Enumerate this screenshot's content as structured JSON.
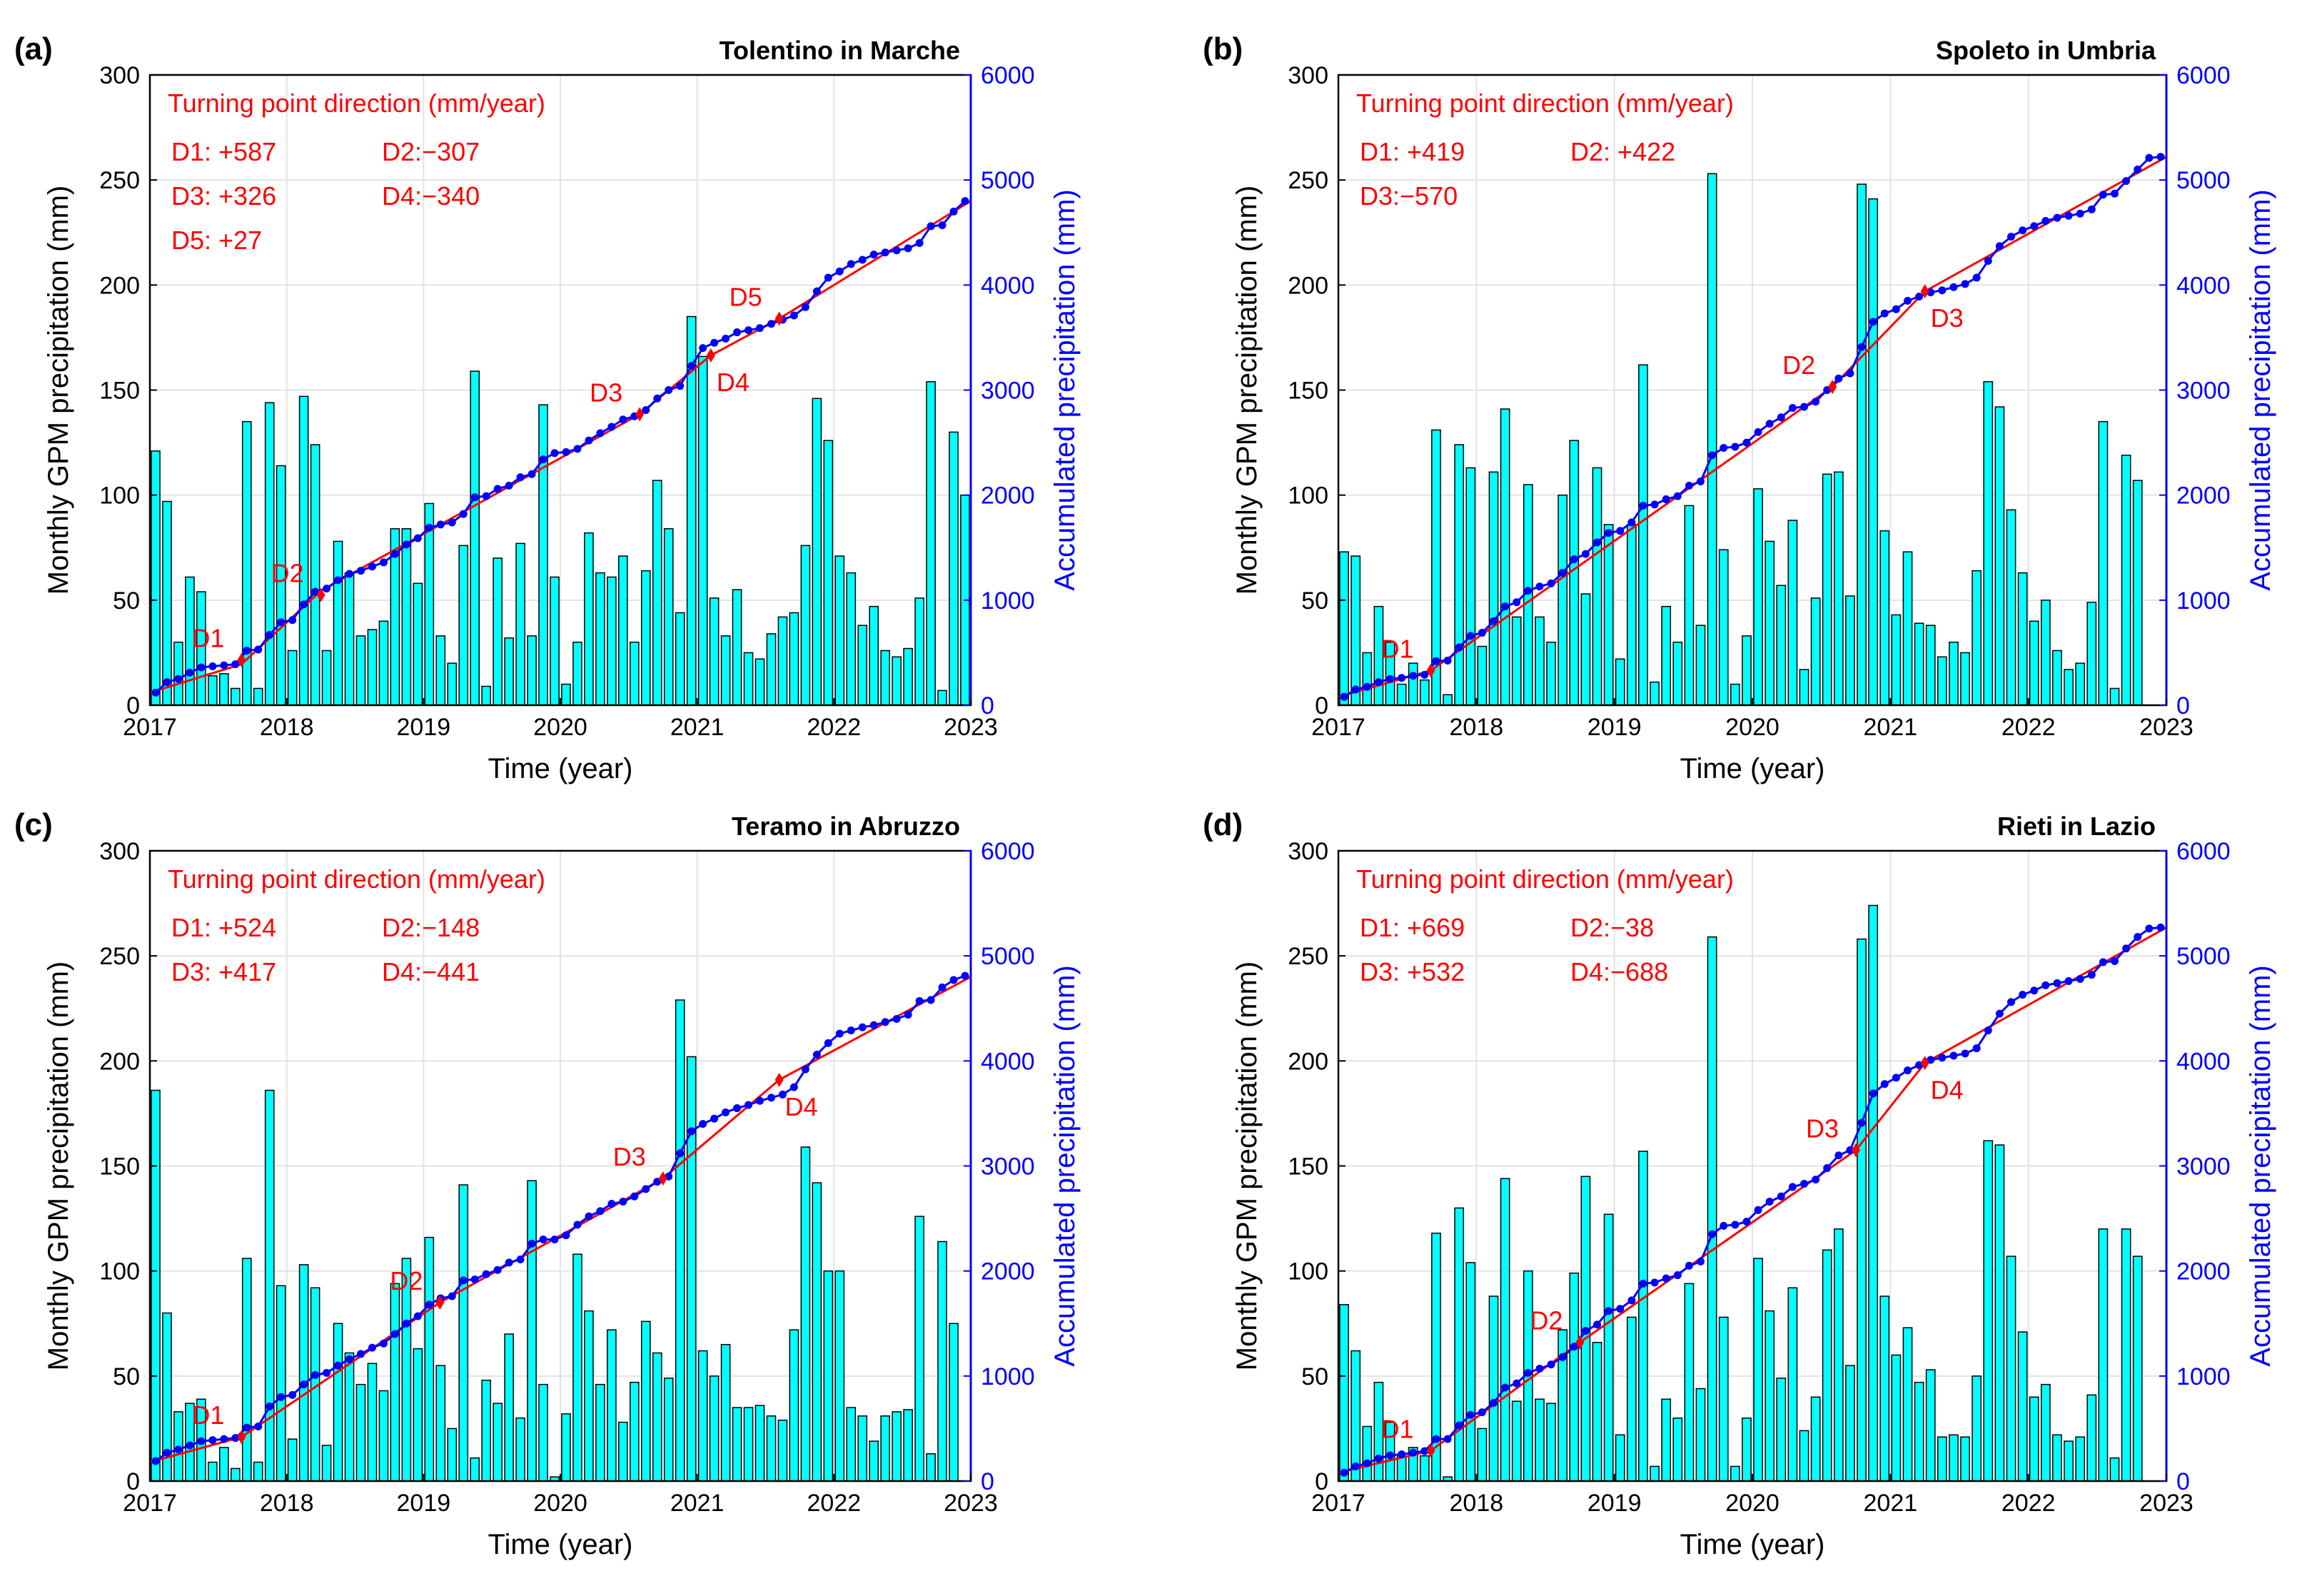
{
  "chart_data": [
    {
      "type": "bar+line",
      "panel_label": "(a)",
      "title": "Tolentino in Marche",
      "xlabel": "Time (year)",
      "ylabel": "Monthly GPM precipitation (mm)",
      "ylabel_right": "Accumulated precipitation (mm)",
      "xlim": [
        2017,
        2023
      ],
      "ylim": [
        0,
        300
      ],
      "ylim_right": [
        0,
        6000
      ],
      "xticks": [
        "2017",
        "2018",
        "2019",
        "2020",
        "2021",
        "2022",
        "2023"
      ],
      "yticks": [
        "0",
        "50",
        "100",
        "150",
        "200",
        "250",
        "300"
      ],
      "yticks_right": [
        "0",
        "1000",
        "2000",
        "3000",
        "4000",
        "5000",
        "6000"
      ],
      "legend_title": "Turning point direction (mm/year)",
      "directions": [
        "D1: +587",
        "D2:−307",
        "D3: +326",
        "D4:−340",
        "D5: +27"
      ],
      "monthly": [
        121,
        97,
        30,
        61,
        54,
        14,
        15,
        8,
        135,
        8,
        144,
        114,
        26,
        147,
        124,
        26,
        78,
        63,
        33,
        36,
        40,
        84,
        84,
        58,
        96,
        33,
        20,
        76,
        159,
        9,
        70,
        32,
        77,
        33,
        143,
        61,
        10,
        30,
        82,
        63,
        61,
        71,
        30,
        64,
        107,
        84,
        44,
        185,
        166,
        51,
        33,
        55,
        25,
        22,
        34,
        42,
        44,
        76,
        146,
        126,
        71,
        63,
        38,
        47,
        26,
        23,
        27,
        51,
        154,
        7,
        130,
        100
      ],
      "accum": [
        120,
        220,
        250,
        310,
        360,
        370,
        380,
        390,
        520,
        530,
        670,
        790,
        810,
        960,
        1080,
        1110,
        1190,
        1250,
        1280,
        1320,
        1360,
        1440,
        1530,
        1590,
        1690,
        1720,
        1740,
        1820,
        1980,
        1990,
        2060,
        2090,
        2170,
        2200,
        2340,
        2400,
        2410,
        2440,
        2520,
        2590,
        2650,
        2720,
        2750,
        2810,
        2920,
        3000,
        3040,
        3230,
        3400,
        3450,
        3490,
        3550,
        3570,
        3590,
        3630,
        3670,
        3710,
        3790,
        3940,
        4070,
        4130,
        4200,
        4240,
        4290,
        4310,
        4330,
        4350,
        4400,
        4560,
        4570,
        4700,
        4800
      ],
      "trend": [
        [
          2017,
          120
        ],
        [
          2017.67,
          390
        ],
        [
          2018.25,
          1090
        ],
        [
          2020.58,
          2770
        ],
        [
          2021.1,
          3330
        ],
        [
          2021.6,
          3680
        ],
        [
          2023,
          4800
        ]
      ],
      "turning_points": [
        {
          "label": "D1",
          "x": 2017.67,
          "y": 430
        },
        {
          "label": "D2",
          "x": 2018.25,
          "y": 1050
        },
        {
          "label": "D3",
          "x": 2020.58,
          "y": 2770
        },
        {
          "label": "D4",
          "x": 2021.1,
          "y": 3330
        },
        {
          "label": "D5",
          "x": 2021.6,
          "y": 3680
        }
      ]
    },
    {
      "type": "bar+line",
      "panel_label": "(b)",
      "title": "Spoleto in Umbria",
      "xlabel": "Time (year)",
      "ylabel": "Monthly GPM precipitation (mm)",
      "ylabel_right": "Accumulated precipitation (mm)",
      "xlim": [
        2017,
        2023
      ],
      "ylim": [
        0,
        300
      ],
      "ylim_right": [
        0,
        6000
      ],
      "xticks": [
        "2017",
        "2018",
        "2019",
        "2020",
        "2021",
        "2022",
        "2023"
      ],
      "yticks": [
        "0",
        "50",
        "100",
        "150",
        "200",
        "250",
        "300"
      ],
      "yticks_right": [
        "0",
        "1000",
        "2000",
        "3000",
        "4000",
        "5000",
        "6000"
      ],
      "legend_title": "Turning point direction (mm/year)",
      "directions": [
        "D1: +419",
        "D2: +422",
        "D3:−570"
      ],
      "monthly": [
        73,
        71,
        25,
        47,
        30,
        10,
        20,
        12,
        131,
        5,
        124,
        113,
        28,
        111,
        141,
        42,
        105,
        42,
        30,
        100,
        126,
        53,
        113,
        86,
        22,
        86,
        162,
        11,
        47,
        30,
        95,
        38,
        253,
        74,
        10,
        33,
        103,
        78,
        57,
        88,
        17,
        51,
        110,
        111,
        52,
        248,
        241,
        83,
        43,
        73,
        39,
        38,
        23,
        30,
        25,
        64,
        154,
        142,
        93,
        63,
        40,
        50,
        26,
        17,
        20,
        49,
        135,
        8,
        119,
        107,
        0,
        0
      ],
      "accum": [
        80,
        150,
        175,
        220,
        250,
        260,
        280,
        290,
        420,
        425,
        550,
        660,
        690,
        800,
        940,
        980,
        1090,
        1130,
        1160,
        1260,
        1390,
        1440,
        1550,
        1640,
        1660,
        1740,
        1900,
        1910,
        1960,
        1990,
        2090,
        2130,
        2380,
        2450,
        2460,
        2500,
        2600,
        2680,
        2740,
        2830,
        2840,
        2890,
        3000,
        3110,
        3160,
        3410,
        3650,
        3730,
        3770,
        3850,
        3890,
        3930,
        3950,
        3980,
        4010,
        4070,
        4230,
        4370,
        4460,
        4520,
        4560,
        4610,
        4640,
        4660,
        4680,
        4720,
        4860,
        4870,
        4990,
        5100,
        5210,
        5220
      ],
      "trend": [
        [
          2017,
          80
        ],
        [
          2017.67,
          330
        ],
        [
          2020.58,
          3030
        ],
        [
          2021.25,
          3940
        ],
        [
          2023,
          5220
        ]
      ],
      "turning_points": [
        {
          "label": "D1",
          "x": 2017.67,
          "y": 330
        },
        {
          "label": "D2",
          "x": 2020.58,
          "y": 3030
        },
        {
          "label": "D3",
          "x": 2021.25,
          "y": 3940
        }
      ]
    },
    {
      "type": "bar+line",
      "panel_label": "(c)",
      "title": "Teramo in Abruzzo",
      "xlabel": "Time (year)",
      "ylabel": "Monthly GPM precipitation (mm)",
      "ylabel_right": "Accumulated precipitation (mm)",
      "xlim": [
        2017,
        2023
      ],
      "ylim": [
        0,
        300
      ],
      "ylim_right": [
        0,
        6000
      ],
      "xticks": [
        "2017",
        "2018",
        "2019",
        "2020",
        "2021",
        "2022",
        "2023"
      ],
      "yticks": [
        "0",
        "50",
        "100",
        "150",
        "200",
        "250",
        "300"
      ],
      "yticks_right": [
        "0",
        "1000",
        "2000",
        "3000",
        "4000",
        "5000",
        "6000"
      ],
      "legend_title": "Turning point direction (mm/year)",
      "directions": [
        "D1: +524",
        "D2:−148",
        "D3: +417",
        "D4:−441"
      ],
      "monthly": [
        186,
        80,
        33,
        37,
        39,
        9,
        16,
        6,
        106,
        9,
        186,
        93,
        20,
        103,
        92,
        17,
        75,
        61,
        46,
        56,
        43,
        94,
        106,
        63,
        116,
        55,
        25,
        141,
        11,
        48,
        37,
        70,
        30,
        143,
        46,
        2,
        32,
        108,
        81,
        46,
        72,
        28,
        47,
        76,
        61,
        49,
        229,
        202,
        62,
        50,
        65,
        35,
        35,
        36,
        31,
        29,
        72,
        159,
        142,
        100,
        100,
        35,
        31,
        19,
        31,
        33,
        34,
        126,
        13,
        114,
        75,
        0
      ],
      "accum": [
        190,
        270,
        300,
        340,
        380,
        390,
        400,
        410,
        510,
        520,
        710,
        800,
        820,
        920,
        1010,
        1030,
        1100,
        1160,
        1210,
        1270,
        1310,
        1400,
        1500,
        1570,
        1680,
        1740,
        1760,
        1910,
        1920,
        1970,
        2010,
        2080,
        2110,
        2260,
        2300,
        2300,
        2340,
        2440,
        2520,
        2570,
        2640,
        2660,
        2710,
        2780,
        2850,
        2900,
        3120,
        3330,
        3400,
        3450,
        3510,
        3550,
        3580,
        3620,
        3650,
        3680,
        3750,
        3920,
        4060,
        4170,
        4260,
        4290,
        4320,
        4340,
        4370,
        4400,
        4440,
        4570,
        4580,
        4700,
        4770,
        4810
      ],
      "trend": [
        [
          2017,
          180
        ],
        [
          2017.67,
          420
        ],
        [
          2019.12,
          1700
        ],
        [
          2020.75,
          2880
        ],
        [
          2021.6,
          3820
        ],
        [
          2023,
          4800
        ]
      ],
      "turning_points": [
        {
          "label": "D1",
          "x": 2017.67,
          "y": 420
        },
        {
          "label": "D2",
          "x": 2019.12,
          "y": 1700
        },
        {
          "label": "D3",
          "x": 2020.75,
          "y": 2880
        },
        {
          "label": "D4",
          "x": 2021.6,
          "y": 3820
        }
      ]
    },
    {
      "type": "bar+line",
      "panel_label": "(d)",
      "title": "Rieti in Lazio",
      "xlabel": "Time (year)",
      "ylabel": "Monthly GPM precipitation (mm)",
      "ylabel_right": "Accumulated precipitation (mm)",
      "xlim": [
        2017,
        2023
      ],
      "ylim": [
        0,
        300
      ],
      "ylim_right": [
        0,
        6000
      ],
      "xticks": [
        "2017",
        "2018",
        "2019",
        "2020",
        "2021",
        "2022",
        "2023"
      ],
      "yticks": [
        "0",
        "50",
        "100",
        "150",
        "200",
        "250",
        "300"
      ],
      "yticks_right": [
        "0",
        "1000",
        "2000",
        "3000",
        "4000",
        "5000",
        "6000"
      ],
      "legend_title": "Turning point direction (mm/year)",
      "directions": [
        "D1: +669",
        "D2:−38",
        "D3: +532",
        "D4:−688"
      ],
      "monthly": [
        84,
        62,
        26,
        47,
        28,
        12,
        16,
        12,
        118,
        2,
        130,
        104,
        25,
        88,
        144,
        38,
        100,
        39,
        37,
        72,
        99,
        145,
        66,
        127,
        22,
        78,
        157,
        7,
        39,
        30,
        94,
        44,
        259,
        78,
        7,
        30,
        106,
        81,
        49,
        92,
        24,
        40,
        110,
        120,
        55,
        258,
        274,
        88,
        60,
        73,
        47,
        53,
        21,
        22,
        21,
        50,
        162,
        160,
        107,
        71,
        40,
        46,
        22,
        19,
        21,
        41,
        120,
        11,
        120,
        107,
        0,
        0
      ],
      "accum": [
        80,
        140,
        170,
        215,
        245,
        255,
        270,
        285,
        400,
        400,
        530,
        630,
        655,
        745,
        890,
        930,
        1030,
        1070,
        1110,
        1180,
        1280,
        1430,
        1490,
        1620,
        1640,
        1720,
        1880,
        1890,
        1930,
        1960,
        2050,
        2090,
        2350,
        2430,
        2440,
        2470,
        2580,
        2660,
        2710,
        2800,
        2830,
        2870,
        2980,
        3100,
        3150,
        3410,
        3690,
        3780,
        3840,
        3910,
        3960,
        4010,
        4030,
        4050,
        4070,
        4120,
        4290,
        4450,
        4560,
        4630,
        4670,
        4720,
        4740,
        4760,
        4780,
        4820,
        4940,
        4950,
        5070,
        5180,
        5260,
        5270
      ],
      "trend": [
        [
          2017,
          80
        ],
        [
          2017.67,
          290
        ],
        [
          2018.75,
          1320
        ],
        [
          2020.75,
          3150
        ],
        [
          2021.25,
          3980
        ],
        [
          2023,
          5270
        ]
      ],
      "turning_points": [
        {
          "label": "D1",
          "x": 2017.67,
          "y": 290
        },
        {
          "label": "D2",
          "x": 2018.75,
          "y": 1320
        },
        {
          "label": "D3",
          "x": 2020.75,
          "y": 3150
        },
        {
          "label": "D4",
          "x": 2021.25,
          "y": 3980
        }
      ]
    }
  ]
}
